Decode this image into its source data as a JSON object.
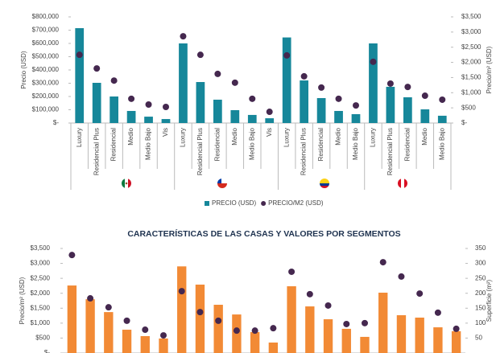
{
  "chart_data": [
    {
      "type": "combo",
      "y_label": "Precio (USD)",
      "y2_label": "Precio/m² (USD)",
      "categories": [
        "Luxury",
        "Residencial Plus",
        "Residencial",
        "Medio",
        "Medio Bajo",
        "Vis",
        "Luxury",
        "Residencial Plus",
        "Residencial",
        "Medio",
        "Medio Bajo",
        "Vis",
        "Luxury",
        "Residencial Plus",
        "Residencial",
        "Medio",
        "Medio Bajo",
        "Luxury",
        "Residencial Plus",
        "Residencial",
        "Medio",
        "Medio Bajo"
      ],
      "series": [
        {
          "name": "PRECIO (USD)",
          "type": "bar",
          "color": "#16879a",
          "values": [
            715000,
            303000,
            200000,
            91000,
            48000,
            30000,
            600000,
            309000,
            176000,
            97000,
            61000,
            36000,
            645000,
            321000,
            188000,
            91000,
            67000,
            600000,
            273000,
            194000,
            103000,
            55000
          ]
        },
        {
          "name": "PRECIO/M2 (USD)",
          "type": "scatter",
          "color": "#45284f",
          "axis": "y2",
          "values": [
            2250,
            1800,
            1400,
            800,
            610,
            530,
            2860,
            2250,
            1620,
            1330,
            800,
            370,
            2230,
            1540,
            1170,
            800,
            580,
            2020,
            1300,
            1190,
            900,
            770
          ]
        }
      ],
      "ylim": [
        0,
        800000
      ],
      "yticks": [
        {
          "value": 0,
          "label": "$-"
        },
        {
          "value": 100000,
          "label": "$100,000"
        },
        {
          "value": 200000,
          "label": "$200,000"
        },
        {
          "value": 300000,
          "label": "$300,000"
        },
        {
          "value": 400000,
          "label": "$400,000"
        },
        {
          "value": 500000,
          "label": "$500,000"
        },
        {
          "value": 600000,
          "label": "$600,000"
        },
        {
          "value": 700000,
          "label": "$700,000"
        },
        {
          "value": 800000,
          "label": "$800,000"
        }
      ],
      "y2lim": [
        0,
        3500
      ],
      "y2ticks": [
        {
          "value": 0,
          "label": "$-"
        },
        {
          "value": 500,
          "label": "$500"
        },
        {
          "value": 1000,
          "label": "$1,000"
        },
        {
          "value": 1500,
          "label": "$1,500"
        },
        {
          "value": 2000,
          "label": "$2,000"
        },
        {
          "value": 2500,
          "label": "$2,500"
        },
        {
          "value": 3000,
          "label": "$3,000"
        },
        {
          "value": 3500,
          "label": "$3,500"
        }
      ],
      "legend": "bottom"
    },
    {
      "type": "combo",
      "title": "CARACTERÍSTICAS DE LAS CASAS Y VALORES POR SEGMENTOS",
      "y_label": "Precio/m² (USD)",
      "y2_label": "Superficie (m²)",
      "series": [
        {
          "type": "bar",
          "color": "#f28a35",
          "values": [
            2260,
            1800,
            1370,
            780,
            565,
            485,
            2900,
            2290,
            1615,
            1290,
            700,
            350,
            2235,
            1560,
            1130,
            810,
            540,
            2020,
            1265,
            1185,
            860,
            730
          ]
        },
        {
          "type": "scatter",
          "color": "#45284f",
          "axis": "y2",
          "values": [
            328,
            183,
            153,
            108,
            78,
            59,
            207,
            137,
            108,
            75,
            75,
            83,
            272,
            197,
            159,
            97,
            100,
            304,
            256,
            199,
            135,
            81
          ]
        }
      ],
      "ylim": [
        0,
        3500
      ],
      "yticks": [
        {
          "value": 0,
          "label": "$-"
        },
        {
          "value": 500,
          "label": "$500"
        },
        {
          "value": 1000,
          "label": "$1,000"
        },
        {
          "value": 1500,
          "label": "$1,500"
        },
        {
          "value": 2000,
          "label": "$2,000"
        },
        {
          "value": 2500,
          "label": "$2,500"
        },
        {
          "value": 3000,
          "label": "$3,000"
        },
        {
          "value": 3500,
          "label": "$3,500"
        }
      ],
      "y2lim": [
        0,
        350
      ],
      "y2ticks": [
        50,
        100,
        150,
        200,
        250,
        300,
        350
      ]
    }
  ]
}
